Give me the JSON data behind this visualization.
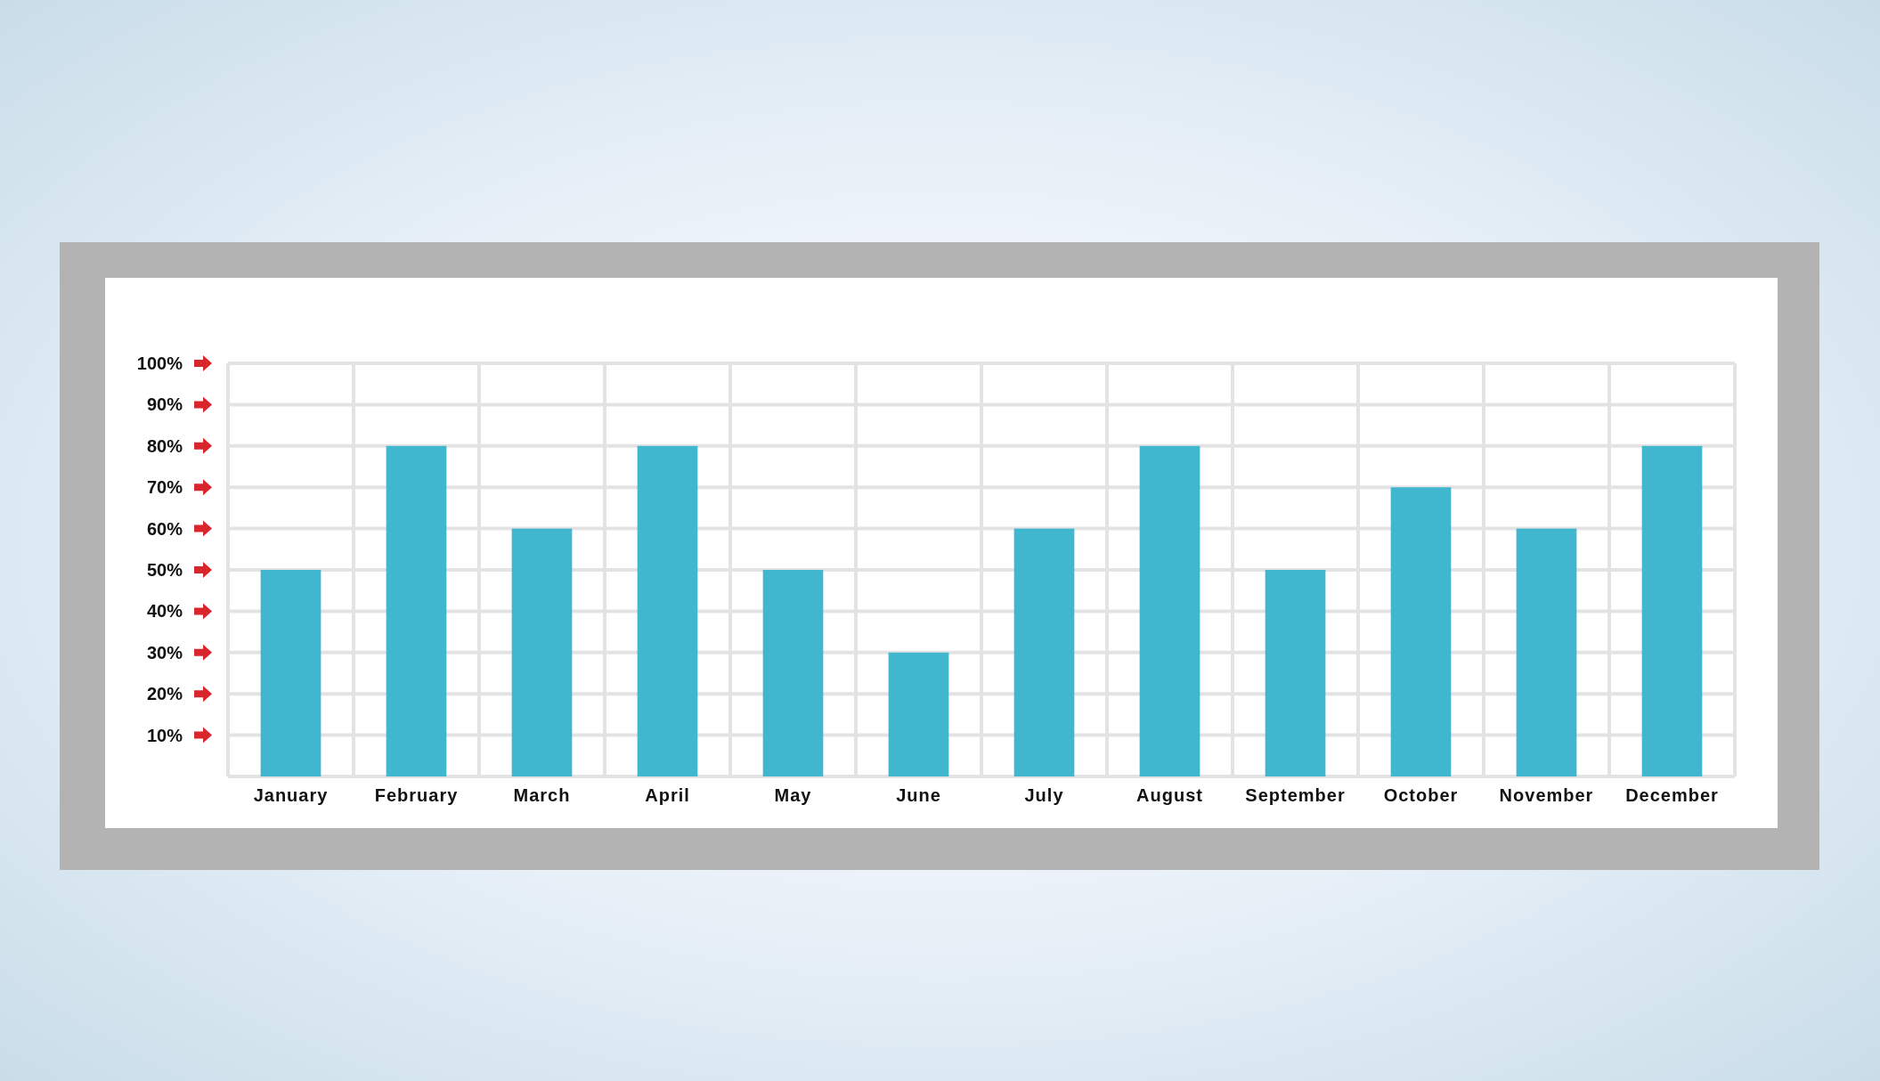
{
  "chart_data": {
    "type": "bar",
    "categories": [
      "January",
      "February",
      "March",
      "April",
      "May",
      "June",
      "July",
      "August",
      "September",
      "October",
      "November",
      "December"
    ],
    "values": [
      50,
      80,
      60,
      80,
      50,
      30,
      60,
      80,
      50,
      70,
      60,
      80
    ],
    "color": "#41b7cf",
    "ylim": [
      0,
      100
    ],
    "yticks": [
      {
        "value": 10,
        "label": "10%"
      },
      {
        "value": 20,
        "label": "20%"
      },
      {
        "value": 30,
        "label": "30%"
      },
      {
        "value": 40,
        "label": "40%"
      },
      {
        "value": 50,
        "label": "50%"
      },
      {
        "value": 60,
        "label": "60%"
      },
      {
        "value": 70,
        "label": "70%"
      },
      {
        "value": 80,
        "label": "80%"
      },
      {
        "value": 90,
        "label": "90%"
      },
      {
        "value": 100,
        "label": "100%"
      }
    ],
    "grid": true
  }
}
